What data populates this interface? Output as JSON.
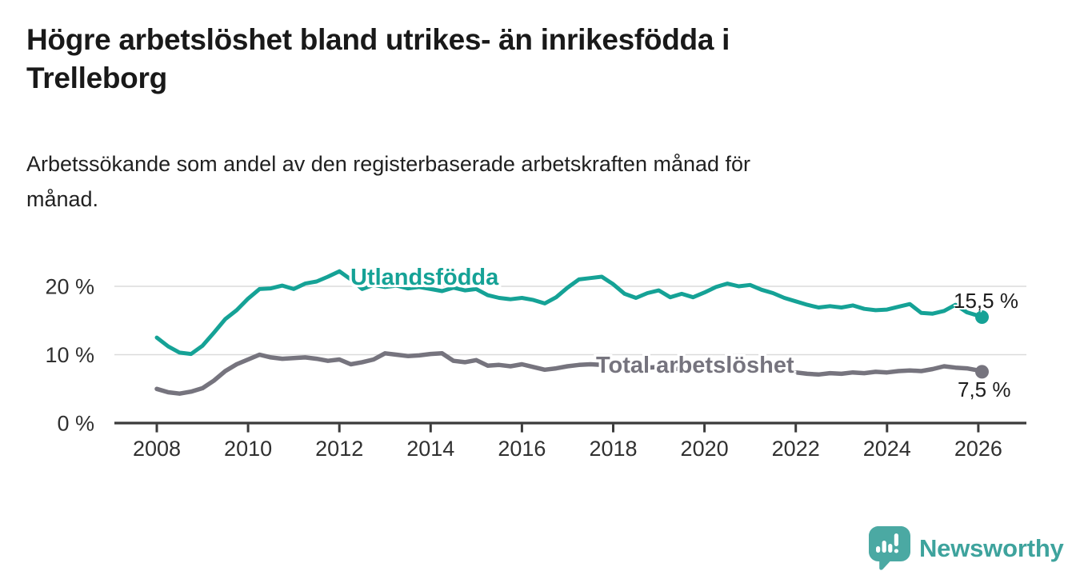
{
  "title_lines": [
    "Högre arbetslöshet bland utrikes- än inrikesfödda i",
    "Trelleborg"
  ],
  "subtitle_lines": [
    "Arbetssökande som andel av den registerbaserade arbetskraften månad för",
    "månad."
  ],
  "colors": {
    "accent_teal": "#15A296",
    "series_gray": "#76747E",
    "grid": "#DBDBDB",
    "axis": "#3B3B3B",
    "tick_text": "#303030",
    "logo_bubble": "#4BA9A3",
    "logo_text": "#3EA39D"
  },
  "chart_data": {
    "type": "line",
    "title": "Högre arbetslöshet bland utrikes- än inrikesfödda i Trelleborg",
    "subtitle": "Arbetssökande som andel av den registerbaserade arbetskraften månad för månad.",
    "xlabel": "",
    "ylabel": "",
    "legend_position": "inline-labels",
    "grid": "horizontal-only",
    "x_axis": {
      "min": 2007.1,
      "max": 2027.0,
      "ticks": [
        2008,
        2010,
        2012,
        2014,
        2016,
        2018,
        2020,
        2022,
        2024,
        2026
      ]
    },
    "y_axis": {
      "min": 0,
      "max": 23,
      "ticks": [
        {
          "value": 0,
          "label": "0 %"
        },
        {
          "value": 10,
          "label": "10 %"
        },
        {
          "value": 20,
          "label": "20 %"
        }
      ]
    },
    "x": [
      2008,
      2008.25,
      2008.5,
      2008.75,
      2009,
      2009.25,
      2009.5,
      2009.75,
      2010,
      2010.25,
      2010.5,
      2010.75,
      2011,
      2011.25,
      2011.5,
      2011.75,
      2012,
      2012.25,
      2012.5,
      2012.75,
      2013,
      2013.25,
      2013.5,
      2013.75,
      2014,
      2014.25,
      2014.5,
      2014.75,
      2015,
      2015.25,
      2015.5,
      2015.75,
      2016,
      2016.25,
      2016.5,
      2016.75,
      2017,
      2017.25,
      2017.5,
      2017.75,
      2018,
      2018.25,
      2018.5,
      2018.75,
      2019,
      2019.25,
      2019.5,
      2019.75,
      2020,
      2020.25,
      2020.5,
      2020.75,
      2021,
      2021.25,
      2021.5,
      2021.75,
      2022,
      2022.25,
      2022.5,
      2022.75,
      2023,
      2023.25,
      2023.5,
      2023.75,
      2024,
      2024.25,
      2024.5,
      2024.75,
      2025,
      2025.25,
      2025.5,
      2025.75,
      2026,
      2026.08
    ],
    "series": [
      {
        "name": "Utlandsfödda",
        "color": "#15A296",
        "line_width": 5,
        "end_value": 15.5,
        "end_label": "15,5 %",
        "values": [
          12.5,
          11.2,
          10.3,
          10.1,
          11.3,
          13.2,
          15.2,
          16.5,
          18.2,
          19.6,
          19.7,
          20.1,
          19.6,
          20.4,
          20.7,
          21.4,
          22.2,
          21.0,
          19.6,
          20.2,
          19.9,
          20.1,
          19.7,
          19.9,
          19.6,
          19.3,
          19.8,
          19.4,
          19.6,
          18.7,
          18.3,
          18.1,
          18.3,
          18.0,
          17.5,
          18.4,
          19.8,
          21.0,
          21.2,
          21.4,
          20.3,
          18.9,
          18.3,
          19.0,
          19.4,
          18.4,
          18.9,
          18.4,
          19.1,
          19.9,
          20.4,
          20.0,
          20.2,
          19.5,
          19.0,
          18.3,
          17.8,
          17.3,
          16.9,
          17.1,
          16.9,
          17.2,
          16.7,
          16.5,
          16.6,
          17.0,
          17.4,
          16.1,
          16.0,
          16.4,
          17.3,
          16.2,
          15.7,
          15.5
        ]
      },
      {
        "name": "Total arbetslöshet",
        "color": "#76747E",
        "line_width": 5.5,
        "end_value": 7.5,
        "end_label": "7,5 %",
        "values": [
          5.0,
          4.5,
          4.3,
          4.6,
          5.1,
          6.2,
          7.6,
          8.6,
          9.3,
          10.0,
          9.6,
          9.4,
          9.5,
          9.6,
          9.4,
          9.1,
          9.3,
          8.6,
          8.9,
          9.3,
          10.2,
          10.0,
          9.8,
          9.9,
          10.1,
          10.2,
          9.1,
          8.9,
          9.2,
          8.4,
          8.5,
          8.3,
          8.6,
          8.2,
          7.8,
          8.0,
          8.3,
          8.5,
          8.6,
          8.5,
          8.4,
          8.2,
          8.0,
          8.1,
          8.2,
          8.0,
          7.9,
          8.0,
          8.2,
          8.6,
          8.8,
          8.6,
          8.5,
          8.2,
          7.9,
          7.6,
          7.4,
          7.2,
          7.1,
          7.3,
          7.2,
          7.4,
          7.3,
          7.5,
          7.4,
          7.6,
          7.7,
          7.6,
          7.9,
          8.3,
          8.1,
          8.0,
          7.7,
          7.5
        ]
      }
    ]
  },
  "logo": {
    "text": "Newsworthy",
    "icon": "newsworthy-bubble-barchart-icon"
  }
}
